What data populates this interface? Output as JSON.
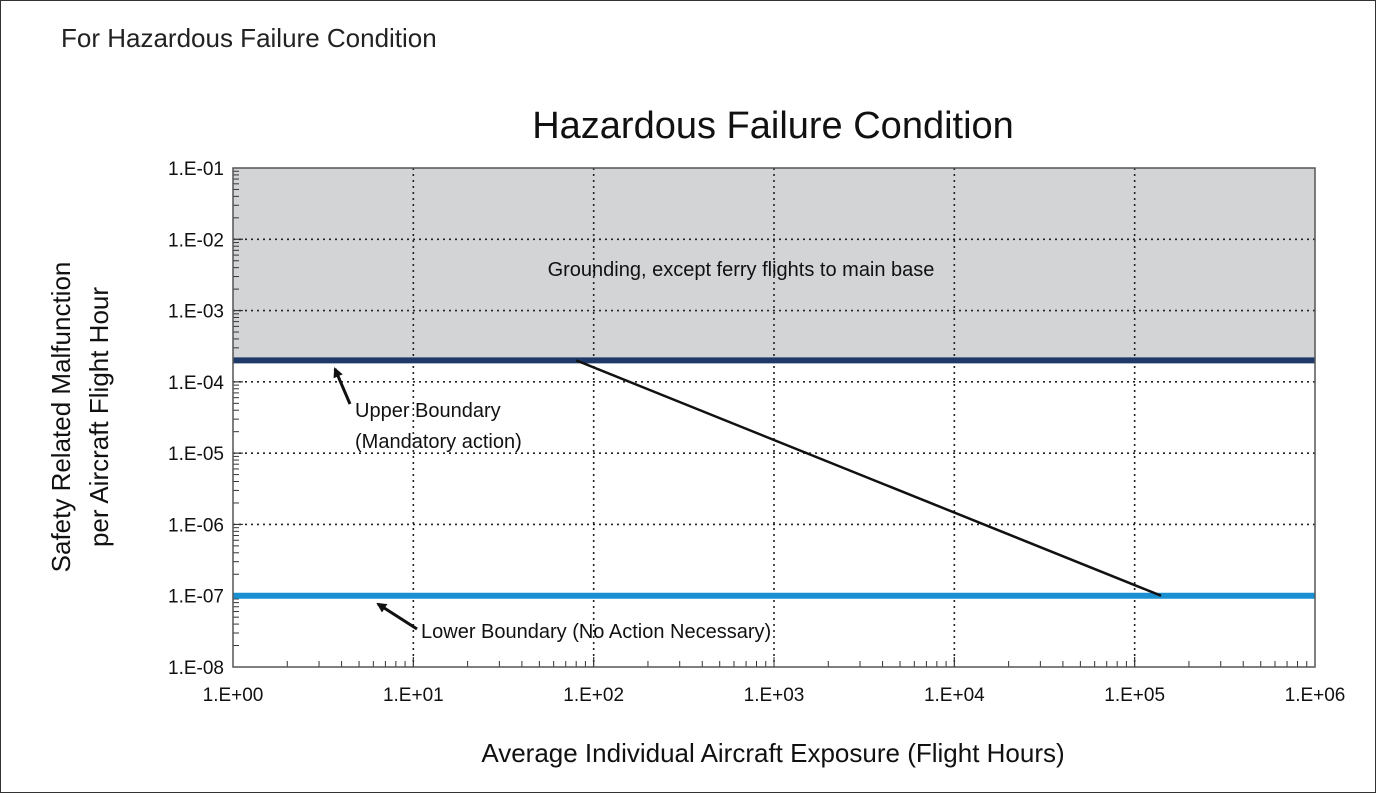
{
  "header": {
    "corner_title": "For Hazardous Failure Condition"
  },
  "chart_data": {
    "type": "line",
    "title": "Hazardous Failure Condition",
    "xlabel": "Average Individual Aircraft Exposure (Flight Hours)",
    "ylabel_lines": [
      "Safety Related Malfunction",
      "per Aircraft Flight Hour"
    ],
    "x_scale": "log",
    "y_scale": "log",
    "xlim": [
      1,
      1000000
    ],
    "ylim": [
      1e-08,
      0.1
    ],
    "x_tick_labels": [
      "1.E+00",
      "1.E+01",
      "1.E+02",
      "1.E+03",
      "1.E+04",
      "1.E+05",
      "1.E+06"
    ],
    "y_tick_labels": [
      "1.E-01",
      "1.E-02",
      "1.E-03",
      "1.E-04",
      "1.E-05",
      "1.E-06",
      "1.E-07",
      "1.E-08"
    ],
    "grid": true,
    "regions": [
      {
        "name": "grounding",
        "label": "Grounding, except ferry flights to main base",
        "y_from": 0.0002,
        "y_to": 0.1,
        "color": "#d3d4d6"
      }
    ],
    "horizontal_lines": [
      {
        "name": "upper",
        "y": 0.0002,
        "color": "#1f3a68"
      },
      {
        "name": "lower",
        "y": 1e-07,
        "color": "#1a8fd1"
      }
    ],
    "series": [
      {
        "name": "Transition",
        "color": "#111111",
        "points": [
          [
            80,
            0.0002
          ],
          [
            140000,
            1e-07
          ]
        ]
      }
    ],
    "annotations": [
      {
        "name": "upper-boundary",
        "lines": [
          "Upper Boundary",
          "(Mandatory action)"
        ]
      },
      {
        "name": "lower-boundary",
        "lines": [
          "Lower Boundary (No Action Necessary)"
        ]
      }
    ]
  }
}
